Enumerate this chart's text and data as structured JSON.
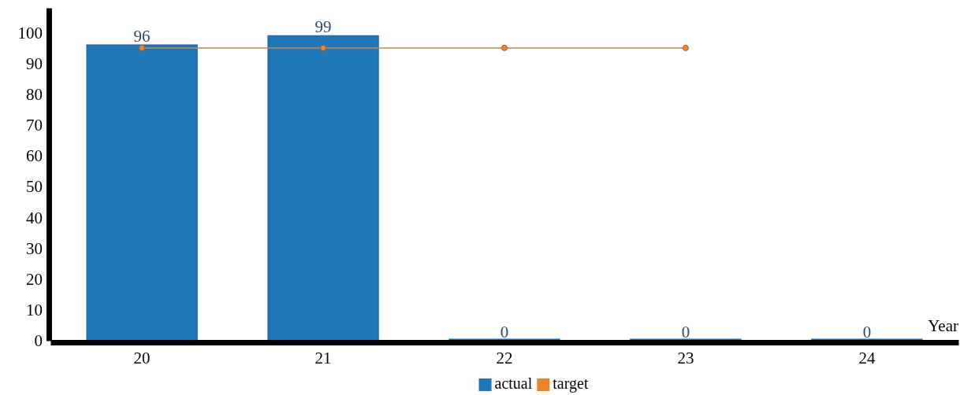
{
  "chart_data": {
    "type": "bar",
    "xlabel": "Year",
    "categories": [
      "20",
      "21",
      "22",
      "23",
      "24"
    ],
    "series": [
      {
        "name": "actual",
        "color": "#2077b8",
        "values": [
          96,
          99,
          0,
          0,
          0
        ],
        "value_labels": [
          "96",
          "99",
          "0",
          "0",
          "0"
        ]
      },
      {
        "name": "target",
        "type": "line",
        "color": "#f0822a",
        "values": [
          95,
          95,
          95,
          95,
          null
        ],
        "marker": "circle"
      }
    ],
    "ylim": [
      0,
      108
    ],
    "yticks": [
      0,
      10,
      20,
      30,
      40,
      50,
      60,
      70,
      80,
      90,
      100
    ],
    "legend": "bottom",
    "grid": false
  }
}
